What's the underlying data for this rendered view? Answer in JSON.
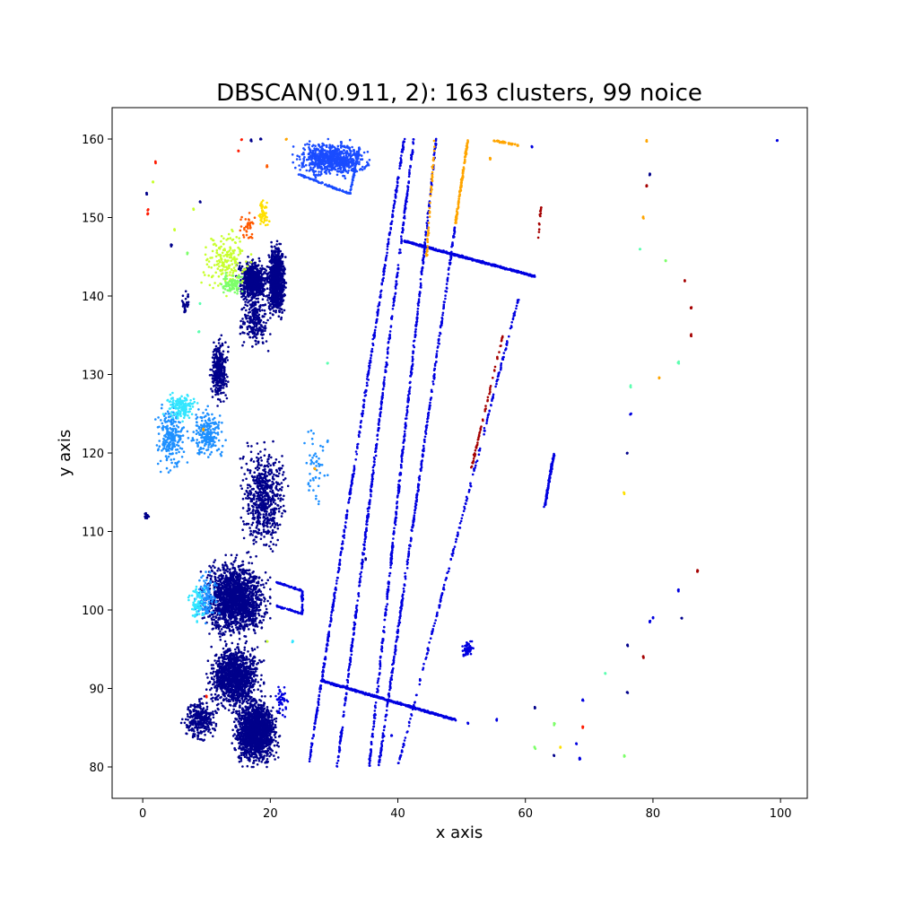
{
  "chart_data": {
    "type": "scatter",
    "title": "DBSCAN(0.911, 2): 163 clusters, 99 noice",
    "xlabel": "x axis",
    "ylabel": "y axis",
    "xlim": [
      -4.8,
      104.2
    ],
    "ylim": [
      76,
      164
    ],
    "xticks": [
      0,
      20,
      40,
      60,
      80,
      100
    ],
    "yticks": [
      80,
      90,
      100,
      110,
      120,
      130,
      140,
      150,
      160
    ],
    "grid": false,
    "legend": "none",
    "colormap": "jet",
    "colors": {
      "dark_navy": "#00008b",
      "blue": "#0000e0",
      "mid_blue": "#1a4cff",
      "sky_blue": "#1e90ff",
      "cyan": "#33e6ff",
      "aquamarine": "#5cffb0",
      "light_green": "#7dff6a",
      "yellow_green": "#c8ff2e",
      "yellow": "#ffe000",
      "orange": "#ffa500",
      "orange_red": "#ff5a00",
      "red": "#ff1a00",
      "dark_red": "#a50000"
    },
    "clusters": [
      {
        "color": "dark_navy",
        "shape": "blob",
        "x_range": [
          19.5,
          22.5
        ],
        "y_range": [
          137,
          147
        ],
        "count": 900
      },
      {
        "color": "dark_navy",
        "shape": "blob",
        "x_range": [
          14.5,
          20
        ],
        "y_range": [
          139,
          145
        ],
        "count": 600
      },
      {
        "color": "dark_navy",
        "shape": "blob",
        "x_range": [
          15,
          20
        ],
        "y_range": [
          133,
          141
        ],
        "count": 250
      },
      {
        "color": "mid_blue",
        "shape": "blob",
        "x_range": [
          23.5,
          36
        ],
        "y_range": [
          155,
          160
        ],
        "count": 700
      },
      {
        "color": "mid_blue",
        "shape": "segment",
        "from": [
          24.5,
          155.5
        ],
        "to": [
          32.5,
          153
        ],
        "count": 80
      },
      {
        "color": "mid_blue",
        "shape": "segment",
        "from": [
          32.5,
          153
        ],
        "to": [
          34,
          159
        ],
        "count": 60
      },
      {
        "color": "dark_navy",
        "shape": "blob",
        "x_range": [
          10.5,
          13.5
        ],
        "y_range": [
          126,
          135
        ],
        "count": 350
      },
      {
        "color": "dark_navy",
        "shape": "blob",
        "x_range": [
          15,
          23
        ],
        "y_range": [
          107,
          122
        ],
        "count": 600
      },
      {
        "color": "dark_navy",
        "shape": "blob",
        "x_range": [
          9,
          20
        ],
        "y_range": [
          96,
          107
        ],
        "count": 1600
      },
      {
        "color": "dark_navy",
        "shape": "blob",
        "x_range": [
          10,
          19
        ],
        "y_range": [
          87,
          96
        ],
        "count": 1200
      },
      {
        "color": "dark_navy",
        "shape": "blob",
        "x_range": [
          14,
          21.5
        ],
        "y_range": [
          80,
          89
        ],
        "count": 1600
      },
      {
        "color": "dark_navy",
        "shape": "blob",
        "x_range": [
          6,
          12
        ],
        "y_range": [
          83,
          89
        ],
        "count": 300
      },
      {
        "color": "blue",
        "shape": "segment",
        "from": [
          26,
          80
        ],
        "to": [
          41,
          160
        ],
        "count": 450
      },
      {
        "color": "blue",
        "shape": "segment",
        "from": [
          30.5,
          80
        ],
        "to": [
          42.5,
          160
        ],
        "count": 450
      },
      {
        "color": "blue",
        "shape": "segment",
        "from": [
          35.5,
          80
        ],
        "to": [
          46,
          160
        ],
        "count": 450
      },
      {
        "color": "blue",
        "shape": "segment",
        "from": [
          37,
          80
        ],
        "to": [
          49,
          149
        ],
        "count": 400
      },
      {
        "color": "blue",
        "shape": "segment",
        "from": [
          40,
          80
        ],
        "to": [
          59,
          140
        ],
        "count": 220
      },
      {
        "color": "blue",
        "shape": "segment",
        "from": [
          41,
          147
        ],
        "to": [
          61.5,
          142.5
        ],
        "count": 600
      },
      {
        "color": "blue",
        "shape": "segment",
        "from": [
          28,
          91
        ],
        "to": [
          49,
          86
        ],
        "count": 600
      },
      {
        "color": "blue",
        "shape": "segment",
        "from": [
          63,
          113
        ],
        "to": [
          64.5,
          120
        ],
        "count": 120
      },
      {
        "color": "blue",
        "shape": "segment",
        "from": [
          21,
          103.5
        ],
        "to": [
          25,
          102.5
        ],
        "count": 40
      },
      {
        "color": "blue",
        "shape": "segment",
        "from": [
          25,
          102.5
        ],
        "to": [
          25,
          99.5
        ],
        "count": 30
      },
      {
        "color": "blue",
        "shape": "segment",
        "from": [
          21,
          100.5
        ],
        "to": [
          25,
          99.5
        ],
        "count": 40
      },
      {
        "color": "blue",
        "shape": "blob",
        "x_range": [
          50,
          52
        ],
        "y_range": [
          94,
          96
        ],
        "count": 60
      },
      {
        "color": "blue",
        "shape": "blob",
        "x_range": [
          20.5,
          23
        ],
        "y_range": [
          86,
          91
        ],
        "count": 40
      },
      {
        "color": "orange",
        "shape": "segment",
        "from": [
          49,
          149
        ],
        "to": [
          51,
          160
        ],
        "count": 120
      },
      {
        "color": "orange",
        "shape": "segment",
        "from": [
          44.5,
          145
        ],
        "to": [
          45.8,
          160
        ],
        "count": 50
      },
      {
        "color": "orange",
        "shape": "segment",
        "from": [
          55,
          159.8
        ],
        "to": [
          59,
          159.2
        ],
        "count": 40
      },
      {
        "color": "dark_red",
        "shape": "segment",
        "from": [
          51.5,
          118
        ],
        "to": [
          56.5,
          135
        ],
        "count": 60
      },
      {
        "color": "dark_red",
        "shape": "segment",
        "from": [
          62,
          147
        ],
        "to": [
          62.5,
          152
        ],
        "count": 15
      },
      {
        "color": "sky_blue",
        "shape": "blob",
        "x_range": [
          2,
          7
        ],
        "y_range": [
          117,
          127
        ],
        "count": 220
      },
      {
        "color": "sky_blue",
        "shape": "blob",
        "x_range": [
          7,
          13
        ],
        "y_range": [
          119,
          126
        ],
        "count": 220
      },
      {
        "color": "cyan",
        "shape": "blob",
        "x_range": [
          3,
          9
        ],
        "y_range": [
          124,
          128
        ],
        "count": 140
      },
      {
        "color": "sky_blue",
        "shape": "blob",
        "x_range": [
          8,
          12
        ],
        "y_range": [
          98,
          105
        ],
        "count": 120
      },
      {
        "color": "cyan",
        "shape": "blob",
        "x_range": [
          7,
          10
        ],
        "y_range": [
          98,
          104
        ],
        "count": 60
      },
      {
        "color": "yellow_green",
        "shape": "blob",
        "x_range": [
          9,
          17
        ],
        "y_range": [
          140,
          149
        ],
        "count": 180
      },
      {
        "color": "light_green",
        "shape": "blob",
        "x_range": [
          12,
          16
        ],
        "y_range": [
          140,
          143
        ],
        "count": 80
      },
      {
        "color": "orange_red",
        "shape": "blob",
        "x_range": [
          15,
          18
        ],
        "y_range": [
          147,
          151
        ],
        "count": 40
      },
      {
        "color": "yellow",
        "shape": "blob",
        "x_range": [
          18,
          20
        ],
        "y_range": [
          148,
          153
        ],
        "count": 50
      },
      {
        "color": "sky_blue",
        "shape": "blob",
        "x_range": [
          25,
          29
        ],
        "y_range": [
          112,
          124
        ],
        "count": 50
      },
      {
        "color": "dark_navy",
        "shape": "blob",
        "x_range": [
          0,
          1.2
        ],
        "y_range": [
          111.5,
          112.5
        ],
        "count": 15
      },
      {
        "color": "dark_navy",
        "shape": "blob",
        "x_range": [
          6,
          7.5
        ],
        "y_range": [
          137,
          141
        ],
        "count": 30
      }
    ],
    "points": [
      {
        "x": 2,
        "y": 157,
        "color": "red"
      },
      {
        "x": 0.8,
        "y": 150.5,
        "color": "red"
      },
      {
        "x": 0.8,
        "y": 151,
        "color": "red"
      },
      {
        "x": 1.6,
        "y": 154.5,
        "color": "yellow_green"
      },
      {
        "x": 0.6,
        "y": 153,
        "color": "dark_navy"
      },
      {
        "x": 5,
        "y": 148.5,
        "color": "yellow_green"
      },
      {
        "x": 4.5,
        "y": 146.5,
        "color": "dark_navy"
      },
      {
        "x": 8,
        "y": 151,
        "color": "yellow_green"
      },
      {
        "x": 9,
        "y": 152,
        "color": "dark_navy"
      },
      {
        "x": 7,
        "y": 145.5,
        "color": "light_green"
      },
      {
        "x": 15,
        "y": 158.5,
        "color": "red"
      },
      {
        "x": 15.5,
        "y": 160,
        "color": "red"
      },
      {
        "x": 17,
        "y": 159.8,
        "color": "dark_navy"
      },
      {
        "x": 18.5,
        "y": 160,
        "color": "dark_navy"
      },
      {
        "x": 19.5,
        "y": 156.5,
        "color": "orange_red"
      },
      {
        "x": 22.5,
        "y": 160,
        "color": "orange"
      },
      {
        "x": 9,
        "y": 139,
        "color": "aquamarine"
      },
      {
        "x": 8.8,
        "y": 135.5,
        "color": "aquamarine"
      },
      {
        "x": 29,
        "y": 131.5,
        "color": "aquamarine"
      },
      {
        "x": 27,
        "y": 118,
        "color": "orange"
      },
      {
        "x": 29,
        "y": 121.5,
        "color": "sky_blue"
      },
      {
        "x": 9.5,
        "y": 123,
        "color": "orange"
      },
      {
        "x": 10,
        "y": 89,
        "color": "red"
      },
      {
        "x": 19.5,
        "y": 96,
        "color": "yellow_green"
      },
      {
        "x": 23.5,
        "y": 96,
        "color": "cyan"
      },
      {
        "x": 35,
        "y": 106.5,
        "color": "dark_navy"
      },
      {
        "x": 39,
        "y": 84,
        "color": "blue"
      },
      {
        "x": 51,
        "y": 85.5,
        "color": "blue"
      },
      {
        "x": 55.5,
        "y": 86,
        "color": "blue"
      },
      {
        "x": 61.5,
        "y": 87.5,
        "color": "dark_navy"
      },
      {
        "x": 61.5,
        "y": 82.5,
        "color": "light_green"
      },
      {
        "x": 64.5,
        "y": 85.5,
        "color": "light_green"
      },
      {
        "x": 65.5,
        "y": 82.5,
        "color": "yellow"
      },
      {
        "x": 64.5,
        "y": 81.5,
        "color": "dark_navy"
      },
      {
        "x": 68,
        "y": 83,
        "color": "blue"
      },
      {
        "x": 68.5,
        "y": 81,
        "color": "blue"
      },
      {
        "x": 69,
        "y": 85,
        "color": "red"
      },
      {
        "x": 69,
        "y": 88.5,
        "color": "blue"
      },
      {
        "x": 72.5,
        "y": 92,
        "color": "aquamarine"
      },
      {
        "x": 75.5,
        "y": 81.5,
        "color": "light_green"
      },
      {
        "x": 76,
        "y": 89.5,
        "color": "dark_navy"
      },
      {
        "x": 76,
        "y": 95.5,
        "color": "dark_navy"
      },
      {
        "x": 78.5,
        "y": 94,
        "color": "dark_red"
      },
      {
        "x": 79.5,
        "y": 98.5,
        "color": "blue"
      },
      {
        "x": 80,
        "y": 99,
        "color": "blue"
      },
      {
        "x": 84,
        "y": 102.5,
        "color": "blue"
      },
      {
        "x": 84.5,
        "y": 99,
        "color": "dark_navy"
      },
      {
        "x": 87,
        "y": 105,
        "color": "dark_red"
      },
      {
        "x": 75.5,
        "y": 115,
        "color": "yellow"
      },
      {
        "x": 76,
        "y": 120,
        "color": "dark_navy"
      },
      {
        "x": 76.5,
        "y": 125,
        "color": "blue"
      },
      {
        "x": 76.5,
        "y": 128.5,
        "color": "aquamarine"
      },
      {
        "x": 81,
        "y": 129.5,
        "color": "orange"
      },
      {
        "x": 84,
        "y": 131.5,
        "color": "aquamarine"
      },
      {
        "x": 86,
        "y": 135,
        "color": "dark_red"
      },
      {
        "x": 86,
        "y": 138.5,
        "color": "dark_red"
      },
      {
        "x": 85,
        "y": 142,
        "color": "dark_red"
      },
      {
        "x": 82,
        "y": 144.5,
        "color": "light_green"
      },
      {
        "x": 78,
        "y": 146,
        "color": "aquamarine"
      },
      {
        "x": 78.5,
        "y": 150,
        "color": "orange"
      },
      {
        "x": 79,
        "y": 154,
        "color": "dark_red"
      },
      {
        "x": 79.5,
        "y": 155.5,
        "color": "dark_navy"
      },
      {
        "x": 79,
        "y": 159.8,
        "color": "orange"
      },
      {
        "x": 99.5,
        "y": 159.8,
        "color": "blue"
      },
      {
        "x": 61,
        "y": 159,
        "color": "blue"
      },
      {
        "x": 54.5,
        "y": 157.5,
        "color": "orange"
      }
    ]
  }
}
